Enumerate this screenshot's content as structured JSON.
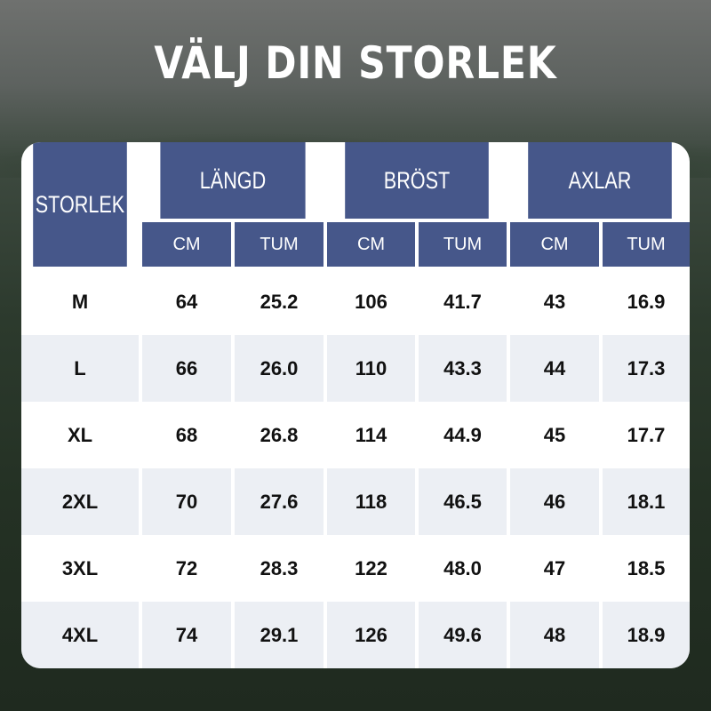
{
  "title": "VÄLJ DIN STORLEK",
  "colors": {
    "header": "#46578a",
    "row_alt": "#eceff4"
  },
  "header": {
    "size": "STORLEK",
    "groups": [
      "LÄNGD",
      "BRÖST",
      "AXLAR"
    ],
    "units": [
      "CM",
      "TUM",
      "CM",
      "TUM",
      "CM",
      "TUM"
    ]
  },
  "rows": [
    [
      "M",
      "64",
      "25.2",
      "106",
      "41.7",
      "43",
      "16.9"
    ],
    [
      "L",
      "66",
      "26.0",
      "110",
      "43.3",
      "44",
      "17.3"
    ],
    [
      "XL",
      "68",
      "26.8",
      "114",
      "44.9",
      "45",
      "17.7"
    ],
    [
      "2XL",
      "70",
      "27.6",
      "118",
      "46.5",
      "46",
      "18.1"
    ],
    [
      "3XL",
      "72",
      "28.3",
      "122",
      "48.0",
      "47",
      "18.5"
    ],
    [
      "4XL",
      "74",
      "29.1",
      "126",
      "49.6",
      "48",
      "18.9"
    ]
  ]
}
